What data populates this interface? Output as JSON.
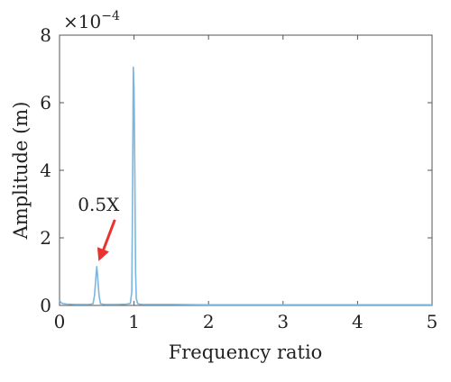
{
  "chart_data": {
    "type": "line",
    "title": "",
    "xlabel": "Frequency ratio",
    "ylabel": "Amplitude (m)",
    "y_multiplier": "×10",
    "y_exponent": "−4",
    "xlim": [
      0,
      5
    ],
    "ylim": [
      0,
      8
    ],
    "x_ticks": [
      0,
      1,
      2,
      3,
      4,
      5
    ],
    "y_ticks": [
      0,
      2,
      4,
      6,
      8
    ],
    "grid": false,
    "legend": "none",
    "series": [
      {
        "color": "#7bb6e0",
        "x": [
          0,
          0.02,
          0.05,
          0.1,
          0.2,
          0.3,
          0.4,
          0.45,
          0.47,
          0.49,
          0.5,
          0.51,
          0.53,
          0.55,
          0.6,
          0.7,
          0.8,
          0.9,
          0.95,
          0.97,
          0.98,
          0.99,
          1.0,
          1.01,
          1.02,
          1.03,
          1.05,
          1.1,
          1.5,
          2.0,
          2.5,
          3.0,
          3.5,
          4.0,
          4.5,
          5.0
        ],
        "y": [
          0.15,
          0.08,
          0.05,
          0.04,
          0.03,
          0.03,
          0.03,
          0.05,
          0.3,
          0.9,
          1.15,
          0.9,
          0.3,
          0.05,
          0.03,
          0.03,
          0.03,
          0.04,
          0.06,
          0.4,
          3.0,
          7.05,
          6.4,
          4.2,
          1.0,
          0.2,
          0.05,
          0.03,
          0.03,
          0.02,
          0.02,
          0.02,
          0.02,
          0.02,
          0.02,
          0.02
        ]
      }
    ],
    "annotations": [
      {
        "text": "0.5X",
        "x": 0.5,
        "y": 1.15,
        "arrow_color": "#e8332f"
      }
    ]
  }
}
